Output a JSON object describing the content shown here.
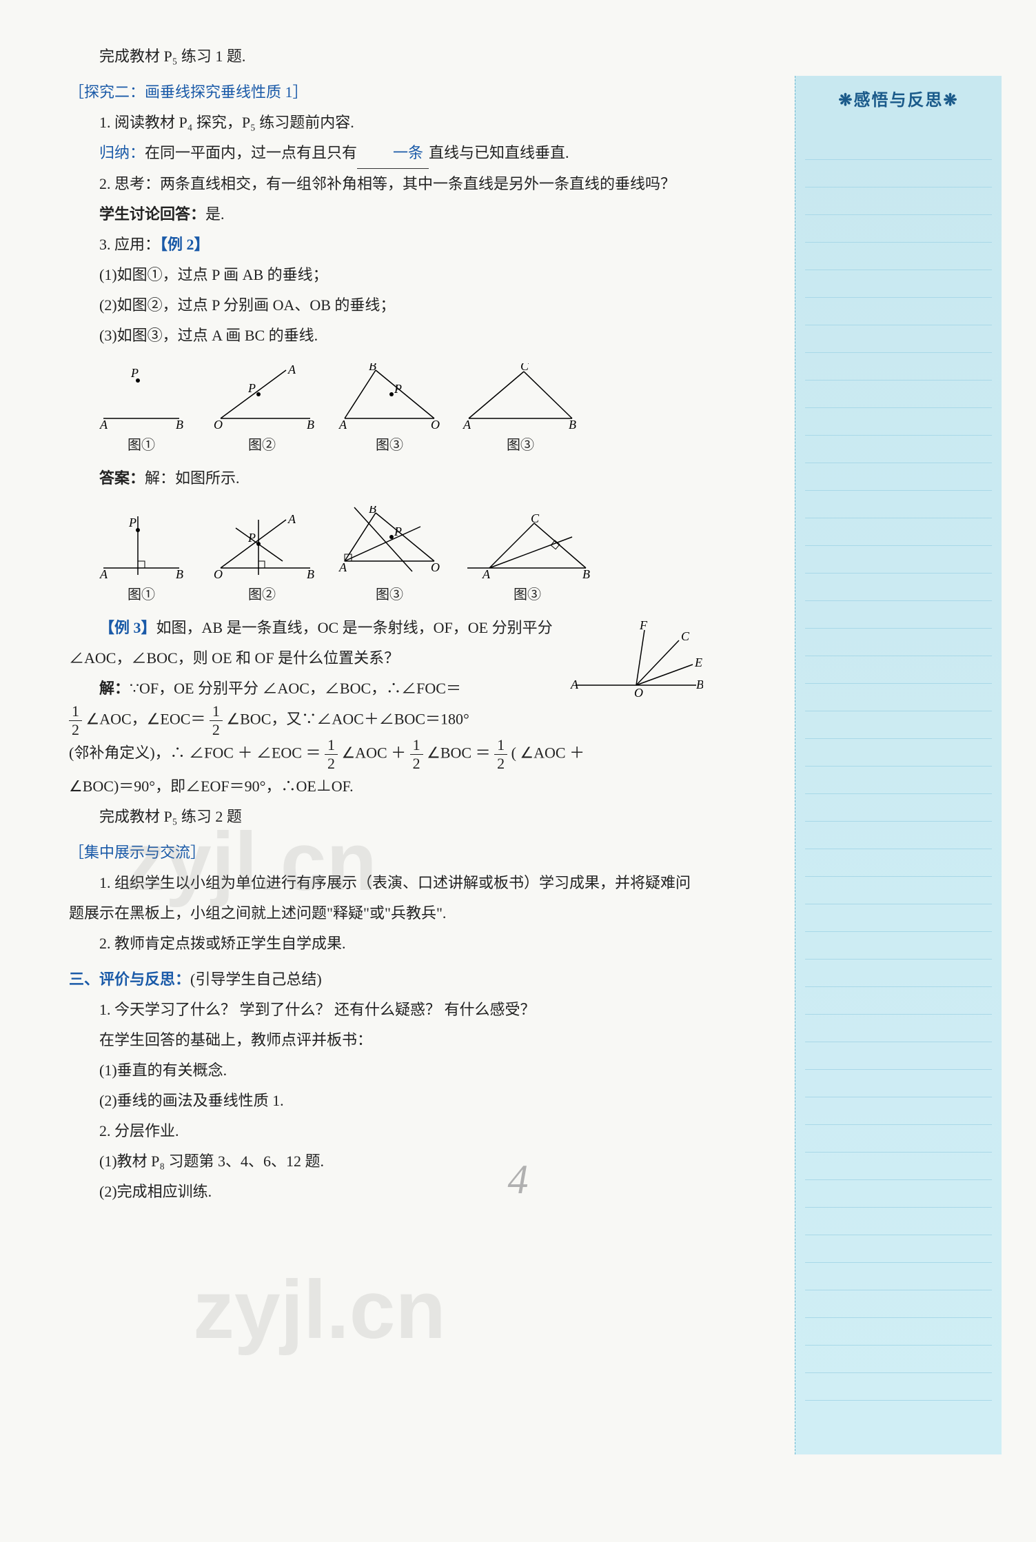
{
  "sidebar": {
    "title": "❋感悟与反思❋",
    "title_color": "#1a5a8a",
    "bg_gradient_top": "#c8e8f0",
    "bg_gradient_bottom": "#d0eef5",
    "line_color": "#a8d8e8",
    "line_count": 46
  },
  "content": {
    "line1": "完成教材 P₅ 练习 1 题.",
    "section2_title": "［探究二：画垂线探究垂线性质 1］",
    "s2_p1": "1. 阅读教材 P₄ 探究，P₅ 练习题前内容.",
    "s2_p2_prefix": "归纳：",
    "s2_p2_text_a": "在同一平面内，过一点有且只有",
    "s2_p2_blank": "一条",
    "s2_p2_text_b": "直线与已知直线垂直.",
    "s2_p3": "2. 思考：两条直线相交，有一组邻补角相等，其中一条直线是另外一条直线的垂线吗？",
    "s2_p4_prefix": "学生讨论回答：",
    "s2_p4_ans": "是.",
    "s2_p5_prefix": "3. 应用：",
    "s2_p5_label": "【例 2】",
    "ex2_1": "(1)如图①，过点 P 画 AB 的垂线；",
    "ex2_2": "(2)如图②，过点 P 分别画 OA、OB 的垂线；",
    "ex2_3": "(3)如图③，过点 A 画 BC 的垂线.",
    "fig1_label": "图①",
    "fig2_label": "图②",
    "fig3_label": "图③",
    "answer_prefix": "答案：",
    "answer_text": "解：如图所示.",
    "ex3_label": "【例 3】",
    "ex3_text": "如图，AB 是一条直线，OC 是一条射线，OF，OE 分别平分 ∠AOC，∠BOC，则 OE 和 OF 是什么位置关系？",
    "ex3_sol_prefix": "解：",
    "ex3_sol1": "∵OF，OE 分别平分 ∠AOC，∠BOC，∴∠FOC＝",
    "ex3_sol2a": "∠AOC，∠EOC＝",
    "ex3_sol2b": "∠BOC，又∵∠AOC＋∠BOC＝180°",
    "ex3_sol3a": "(邻补角定义)，∴ ∠FOC ＋ ∠EOC ＝ ",
    "ex3_sol3b": " ∠AOC ＋ ",
    "ex3_sol3c": " ∠BOC ＝ ",
    "ex3_sol3d": " ( ∠AOC ＋",
    "ex3_sol4": "∠BOC)＝90°，即∠EOF＝90°，∴OE⊥OF.",
    "ex3_after": "完成教材 P₅ 练习 2 题",
    "section3_title": "［集中展示与交流］",
    "s3_p1": "1. 组织学生以小组为单位进行有序展示（表演、口述讲解或板书）学习成果，并将疑难问题展示在黑板上，小组之间就上述问题\"释疑\"或\"兵教兵\".",
    "s3_p2": "2. 教师肯定点拨或矫正学生自学成果.",
    "section4_title": "三、评价与反思：",
    "section4_sub": "(引导学生自己总结)",
    "s4_p1": "1. 今天学习了什么？ 学到了什么？ 还有什么疑惑？ 有什么感受？",
    "s4_p2": "在学生回答的基础上，教师点评并板书：",
    "s4_p3": "(1)垂直的有关概念.",
    "s4_p4": "(2)垂线的画法及垂线性质 1.",
    "s4_p5": "2. 分层作业.",
    "s4_p6": "(1)教材 P₈ 习题第 3、4、6、12 题.",
    "s4_p7": "(2)完成相应训练."
  },
  "colors": {
    "text": "#222222",
    "blue": "#1a5aa8",
    "page_bg": "#f8f8f5"
  },
  "diagrams": {
    "row1": {
      "fig1": {
        "type": "line-with-point",
        "labels": [
          "A",
          "B",
          "P"
        ],
        "stroke": "#000"
      },
      "fig2": {
        "type": "angle-with-point",
        "labels": [
          "O",
          "A",
          "B",
          "P"
        ],
        "stroke": "#000"
      },
      "fig3": {
        "type": "triangle-with-point",
        "labels": [
          "A",
          "B",
          "O",
          "P"
        ],
        "stroke": "#000"
      },
      "fig4": {
        "type": "triangle",
        "labels": [
          "A",
          "B",
          "C"
        ],
        "stroke": "#000"
      }
    },
    "row2": {
      "fig1": {
        "type": "perp-on-line",
        "labels": [
          "A",
          "B",
          "P"
        ],
        "perp_marker": true
      },
      "fig2": {
        "type": "angle-with-perps",
        "labels": [
          "O",
          "A",
          "B",
          "P"
        ],
        "perp_marker": true
      },
      "fig3": {
        "type": "triangle-with-perps",
        "labels": [
          "A",
          "B",
          "O",
          "P"
        ],
        "perp_marker": true
      },
      "fig4": {
        "type": "triangle-altitude",
        "labels": [
          "A",
          "B",
          "C"
        ],
        "perp_marker": true
      }
    },
    "side": {
      "type": "rays",
      "labels": [
        "A",
        "B",
        "C",
        "E",
        "F",
        "O"
      ],
      "stroke": "#000"
    }
  },
  "watermarks": {
    "wm1": "zyjl.cn",
    "wm2": "zyjl.cn"
  },
  "page_number": "4"
}
